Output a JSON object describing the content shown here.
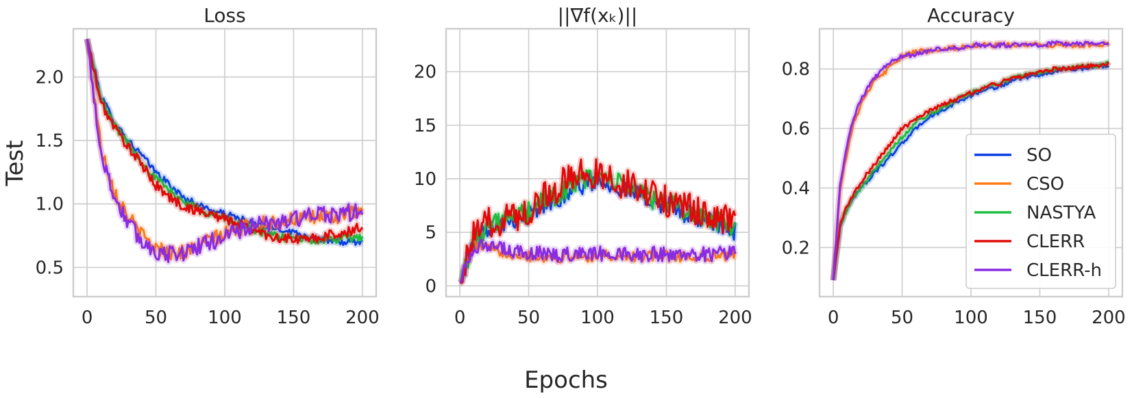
{
  "figure": {
    "ylabel": "Test",
    "xlabel": "Epochs",
    "legend_position": "lower-right",
    "colors": {
      "SO": "#0a3fe6",
      "CSO": "#ff7a14",
      "NASTYA": "#1ebe3c",
      "CLERR": "#e00a0a",
      "CLERR-h": "#8a2be2"
    }
  },
  "chart_data": [
    {
      "type": "line",
      "title": "Loss",
      "xlim": [
        -10,
        210
      ],
      "ylim": [
        0.27,
        2.38
      ],
      "xticks": [
        0,
        50,
        100,
        150,
        200
      ],
      "yticks": [
        0.5,
        1.0,
        1.5,
        2.0
      ],
      "ytick_labels": [
        "0.5",
        "1.0",
        "1.5",
        "2.0"
      ],
      "grid": true,
      "x": [
        0,
        10,
        20,
        30,
        40,
        50,
        60,
        70,
        80,
        90,
        100,
        110,
        120,
        130,
        140,
        150,
        160,
        170,
        180,
        190,
        200
      ],
      "series": [
        {
          "name": "SO",
          "values": [
            2.3,
            1.85,
            1.65,
            1.5,
            1.38,
            1.25,
            1.15,
            1.05,
            1.0,
            0.95,
            0.92,
            0.89,
            0.85,
            0.82,
            0.8,
            0.78,
            0.74,
            0.72,
            0.7,
            0.7,
            0.7
          ]
        },
        {
          "name": "CSO",
          "values": [
            2.3,
            1.45,
            1.1,
            0.9,
            0.75,
            0.65,
            0.62,
            0.62,
            0.66,
            0.72,
            0.76,
            0.8,
            0.83,
            0.85,
            0.86,
            0.88,
            0.88,
            0.9,
            0.9,
            0.92,
            0.92
          ]
        },
        {
          "name": "NASTYA",
          "values": [
            2.3,
            1.82,
            1.62,
            1.47,
            1.33,
            1.2,
            1.1,
            1.02,
            0.97,
            0.92,
            0.88,
            0.84,
            0.8,
            0.77,
            0.74,
            0.72,
            0.72,
            0.71,
            0.72,
            0.73,
            0.74
          ]
        },
        {
          "name": "CLERR",
          "values": [
            2.3,
            1.8,
            1.6,
            1.45,
            1.3,
            1.15,
            1.05,
            0.98,
            0.95,
            0.92,
            0.88,
            0.84,
            0.8,
            0.76,
            0.73,
            0.72,
            0.72,
            0.74,
            0.76,
            0.78,
            0.82
          ]
        },
        {
          "name": "CLERR-h",
          "values": [
            2.3,
            1.4,
            1.05,
            0.85,
            0.7,
            0.63,
            0.6,
            0.62,
            0.66,
            0.7,
            0.75,
            0.79,
            0.82,
            0.84,
            0.86,
            0.88,
            0.9,
            0.91,
            0.92,
            0.93,
            0.94
          ]
        }
      ]
    },
    {
      "type": "line",
      "title": "||∇f(xₖ)||",
      "xlim": [
        -10,
        210
      ],
      "ylim": [
        -1,
        24
      ],
      "xticks": [
        0,
        50,
        100,
        150,
        200
      ],
      "yticks": [
        0,
        5,
        10,
        15,
        20
      ],
      "ytick_labels": [
        "0",
        "5",
        "10",
        "15",
        "20"
      ],
      "grid": true,
      "x": [
        0,
        10,
        20,
        30,
        40,
        50,
        60,
        70,
        80,
        90,
        100,
        110,
        120,
        130,
        140,
        150,
        160,
        170,
        180,
        190,
        200
      ],
      "series": [
        {
          "name": "SO",
          "values": [
            0.3,
            4.0,
            5.5,
            6.0,
            6.3,
            6.6,
            7.5,
            8.0,
            9.0,
            9.5,
            10.0,
            9.5,
            9.0,
            8.5,
            8.0,
            7.5,
            7.0,
            6.5,
            6.0,
            5.5,
            5.0
          ]
        },
        {
          "name": "CSO",
          "values": [
            0.3,
            4.0,
            3.5,
            3.2,
            3.0,
            2.8,
            2.7,
            2.6,
            2.7,
            2.7,
            2.8,
            2.8,
            2.7,
            2.7,
            2.8,
            2.8,
            2.7,
            2.7,
            2.8,
            2.8,
            2.8
          ]
        },
        {
          "name": "NASTYA",
          "values": [
            0.3,
            4.2,
            5.6,
            6.0,
            6.4,
            6.8,
            7.8,
            8.5,
            9.2,
            10.0,
            10.2,
            9.8,
            9.3,
            8.8,
            8.2,
            7.8,
            7.2,
            6.8,
            6.3,
            5.9,
            5.5
          ]
        },
        {
          "name": "CLERR",
          "values": [
            0.3,
            4.5,
            5.8,
            6.2,
            6.6,
            7.0,
            8.2,
            9.2,
            10.0,
            10.5,
            10.5,
            10.0,
            9.5,
            9.0,
            8.4,
            8.0,
            7.4,
            7.0,
            6.6,
            6.4,
            6.2
          ]
        },
        {
          "name": "CLERR-h",
          "values": [
            0.3,
            3.8,
            3.6,
            3.4,
            3.2,
            3.0,
            3.0,
            2.9,
            3.0,
            3.1,
            3.0,
            3.1,
            3.0,
            2.9,
            3.0,
            2.9,
            3.0,
            3.0,
            3.0,
            3.0,
            3.0
          ]
        }
      ]
    },
    {
      "type": "line",
      "title": "Accuracy",
      "xlim": [
        -10,
        210
      ],
      "ylim": [
        0.035,
        0.935
      ],
      "xticks": [
        0,
        50,
        100,
        150,
        200
      ],
      "yticks": [
        0.2,
        0.4,
        0.6,
        0.8
      ],
      "ytick_labels": [
        "0.2",
        "0.4",
        "0.6",
        "0.8"
      ],
      "grid": true,
      "x": [
        0,
        5,
        10,
        15,
        20,
        30,
        40,
        50,
        60,
        70,
        80,
        90,
        100,
        110,
        120,
        130,
        140,
        150,
        160,
        170,
        180,
        190,
        200
      ],
      "series": [
        {
          "name": "SO",
          "values": [
            0.09,
            0.27,
            0.33,
            0.37,
            0.4,
            0.45,
            0.5,
            0.55,
            0.6,
            0.64,
            0.66,
            0.69,
            0.71,
            0.73,
            0.74,
            0.76,
            0.77,
            0.78,
            0.79,
            0.8,
            0.8,
            0.81,
            0.81
          ]
        },
        {
          "name": "CSO",
          "values": [
            0.09,
            0.4,
            0.52,
            0.62,
            0.68,
            0.76,
            0.8,
            0.84,
            0.86,
            0.86,
            0.87,
            0.87,
            0.88,
            0.88,
            0.88,
            0.88,
            0.88,
            0.88,
            0.88,
            0.88,
            0.88,
            0.88,
            0.885
          ]
        },
        {
          "name": "NASTYA",
          "values": [
            0.09,
            0.27,
            0.33,
            0.37,
            0.4,
            0.46,
            0.52,
            0.57,
            0.62,
            0.65,
            0.67,
            0.7,
            0.72,
            0.74,
            0.75,
            0.77,
            0.78,
            0.79,
            0.8,
            0.8,
            0.81,
            0.81,
            0.82
          ]
        },
        {
          "name": "CLERR",
          "values": [
            0.09,
            0.28,
            0.34,
            0.38,
            0.42,
            0.48,
            0.54,
            0.6,
            0.63,
            0.66,
            0.68,
            0.7,
            0.72,
            0.74,
            0.75,
            0.77,
            0.78,
            0.79,
            0.8,
            0.8,
            0.81,
            0.81,
            0.82
          ]
        },
        {
          "name": "CLERR-h",
          "values": [
            0.09,
            0.42,
            0.54,
            0.64,
            0.7,
            0.77,
            0.82,
            0.84,
            0.85,
            0.86,
            0.87,
            0.87,
            0.88,
            0.88,
            0.88,
            0.88,
            0.88,
            0.88,
            0.885,
            0.885,
            0.885,
            0.885,
            0.885
          ]
        }
      ]
    }
  ]
}
